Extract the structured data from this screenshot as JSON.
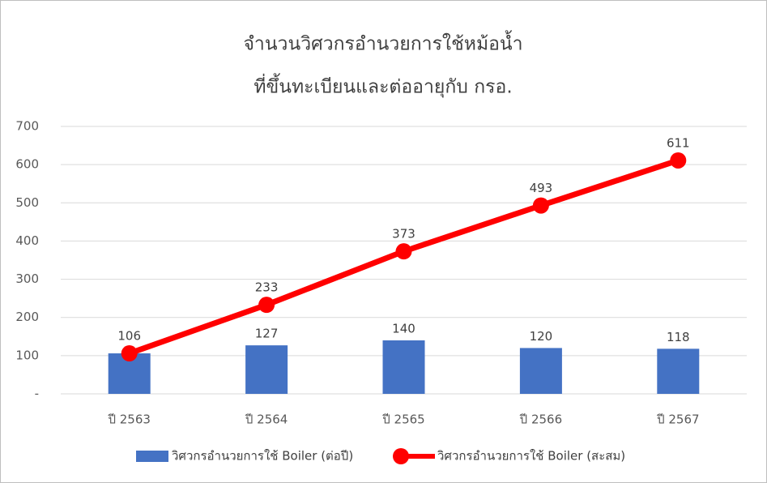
{
  "chart_data": {
    "type": "bar-line",
    "title": [
      "จำนวนวิศวกรอำนวยการใช้หม้อน้ำ",
      "ที่ขึ้นทะเบียนและต่ออายุกับ กรอ."
    ],
    "categories": [
      "ปี 2563",
      "ปี 2564",
      "ปี 2565",
      "ปี 2566",
      "ปี 2567"
    ],
    "series": [
      {
        "name": "วิศวกรอำนวยการใช้ Boiler (ต่อปี)",
        "type": "bar",
        "color": "#4472c4",
        "values": [
          106,
          127,
          140,
          120,
          118
        ]
      },
      {
        "name": "วิศวกรอำนวยการใช้ Boiler (สะสม)",
        "type": "line",
        "color": "#ff0000",
        "values": [
          106,
          233,
          373,
          493,
          611
        ]
      }
    ],
    "ylim": [
      0,
      700
    ],
    "yticks": [
      {
        "value": 0,
        "label": "-"
      },
      100,
      200,
      300,
      400,
      500,
      600,
      700
    ],
    "grid": true,
    "legend": "bottom"
  }
}
